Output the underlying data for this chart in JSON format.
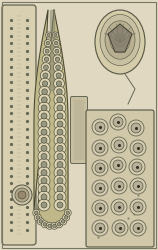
{
  "bg_color": "#e0d8c0",
  "figsize": [
    1.58,
    2.5
  ],
  "dpi": 100,
  "arm_color": "#d8d0b0",
  "arm_edge": "#555544",
  "club_color": "#c0b888",
  "club_edge": "#444433",
  "beak_color": "#d0c8a8",
  "frag_color": "#ccc4a0",
  "strip_color": "#b8b090",
  "dot_color": "#666655",
  "sucker_outer": "#d0c8a8",
  "sucker_inner": "#a89870",
  "dark": "#333322"
}
